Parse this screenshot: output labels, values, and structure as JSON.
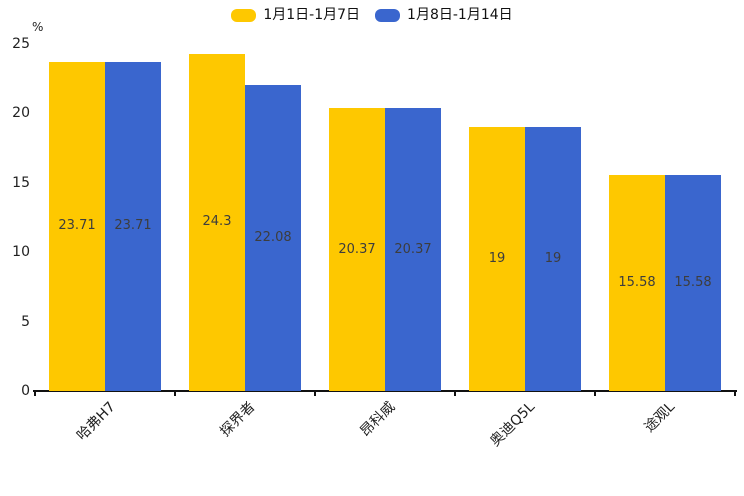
{
  "chart_data": {
    "type": "bar",
    "title": "",
    "unit_label": "%",
    "categories": [
      "哈弗H7",
      "探界者",
      "昂科威",
      "奥迪Q5L",
      "途观L"
    ],
    "series": [
      {
        "name": "1月1日-1月7日",
        "color": "#FEC800",
        "values": [
          23.71,
          24.3,
          20.37,
          19,
          15.58
        ],
        "labels": [
          "23.71",
          "24.3",
          "20.37",
          "19",
          "15.58"
        ]
      },
      {
        "name": "1月8日-1月14日",
        "color": "#3A66CE",
        "values": [
          23.71,
          22.08,
          20.37,
          19,
          15.58
        ],
        "labels": [
          "23.71",
          "22.08",
          "20.37",
          "19",
          "15.58"
        ]
      }
    ],
    "ylim": [
      0,
      25
    ],
    "yticks": [
      0,
      5,
      10,
      15,
      20,
      25
    ],
    "legend_position": "top",
    "grid": false,
    "axis_color": "#111111",
    "tick_label_color": "#1f1f1f",
    "value_label_color": "#3d3d3d",
    "background_color": "#ffffff"
  }
}
